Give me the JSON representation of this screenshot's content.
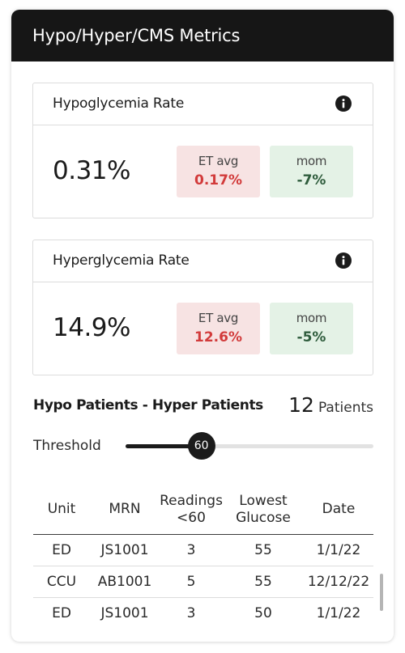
{
  "header": {
    "title": "Hypo/Hyper/CMS Metrics"
  },
  "hypoglycemia": {
    "title": "Hypoglycemia Rate",
    "value": "0.31%",
    "et_label": "ET avg",
    "et_value": "0.17%",
    "mom_label": "mom",
    "mom_value": "-7%",
    "info_icon": "info-icon"
  },
  "hyperglycemia": {
    "title": "Hyperglycemia Rate",
    "value": "14.9%",
    "et_label": "ET avg",
    "et_value": "12.6%",
    "mom_label": "mom",
    "mom_value": "-5%",
    "info_icon": "info-icon"
  },
  "patients": {
    "title": "Hypo Patients - Hyper Patients",
    "count": "12",
    "count_label": "Patients"
  },
  "threshold": {
    "label": "Threshold",
    "value": "60",
    "fraction": 0.306
  },
  "table": {
    "headers": {
      "unit": "Unit",
      "mrn": "MRN",
      "readings_line1": "Readings",
      "readings_line2": "<60",
      "lowest_line1": "Lowest",
      "lowest_line2": "Glucose",
      "date": "Date"
    },
    "rows": [
      {
        "unit": "ED",
        "mrn": "JS1001",
        "readings": "3",
        "lowest": "55",
        "date": "1/1/22"
      },
      {
        "unit": "CCU",
        "mrn": "AB1001",
        "readings": "5",
        "lowest": "55",
        "date": "12/12/22"
      },
      {
        "unit": "ED",
        "mrn": "JS1001",
        "readings": "3",
        "lowest": "50",
        "date": "1/1/22"
      }
    ]
  },
  "colors": {
    "header_bg": "#161616",
    "et_chip_bg": "#f7e3e3",
    "et_value": "#d23b3b",
    "mom_chip_bg": "#e4f2e6",
    "mom_value": "#2e5c3c",
    "slider_fill": "#1b1b1b"
  }
}
